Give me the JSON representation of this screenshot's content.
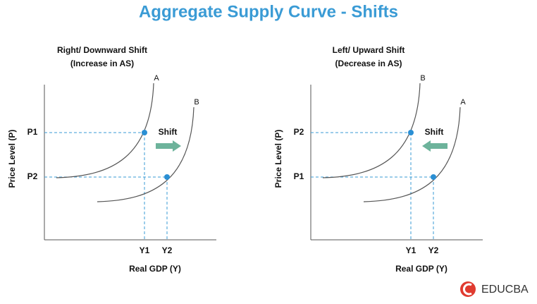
{
  "title": "Aggregate Supply Curve - Shifts",
  "panels": [
    {
      "heading": [
        "Right/ Downward Shift",
        "(Increase in AS)"
      ],
      "y_axis_label": "Price Level (P)",
      "x_axis_label": "Real GDP (Y)",
      "curve_labels": [
        "A",
        "B"
      ],
      "y_tick_labels": [
        "P1",
        "P2"
      ],
      "x_tick_labels": [
        "Y1",
        "Y2"
      ],
      "arrow_label": "Shift"
    },
    {
      "heading": [
        "Left/ Upward Shift",
        "(Decrease in AS)"
      ],
      "y_axis_label": "Price Level (P)",
      "x_axis_label": "Real GDP (Y)",
      "curve_labels": [
        "B",
        "A"
      ],
      "y_tick_labels": [
        "P2",
        "P1"
      ],
      "x_tick_labels": [
        "Y1",
        "Y2"
      ],
      "arrow_label": "Shift"
    }
  ],
  "logo": "EDUCBA"
}
